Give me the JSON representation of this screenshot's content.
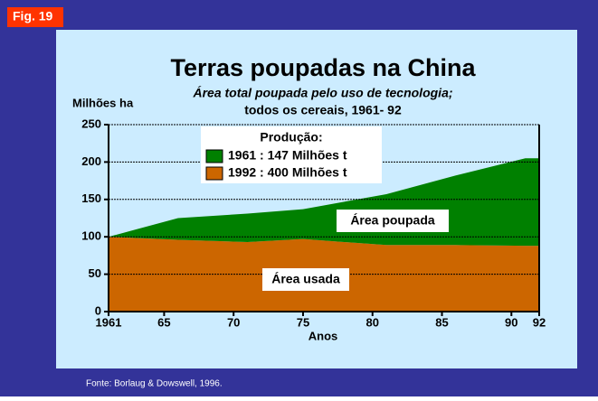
{
  "fig_label": "Fig. 19",
  "source": "Fonte: Borlaug & Dowswell, 1996.",
  "chart_data": {
    "type": "stacked_area",
    "title": "Terras poupadas na China",
    "subtitle": [
      "Área total poupada pelo uso de tecnologia;",
      "todos os cereais, 1961- 92"
    ],
    "y_label": "Milhões ha",
    "x_label": "Anos",
    "x": [
      1961,
      1966,
      1971,
      1975,
      1981,
      1986,
      1991,
      1992
    ],
    "series": [
      {
        "name": "Área usada",
        "color": "#cc6600",
        "values": [
          100,
          96,
          93,
          97,
          89,
          89,
          88,
          88
        ]
      },
      {
        "name": "Área poupada",
        "color": "#008000",
        "values": [
          0,
          29,
          38,
          40,
          68,
          93,
          117,
          117
        ]
      }
    ],
    "legend": {
      "title": "Produção:",
      "items": [
        {
          "label": "1961 : 147 Milhões t",
          "color": "#008000"
        },
        {
          "label": "1992 : 400 Milhões t",
          "color": "#cc6600"
        }
      ]
    },
    "xlim": [
      1961,
      1992
    ],
    "xticks": [
      {
        "value": 1961,
        "label": "1961"
      },
      {
        "value": 1965,
        "label": "65"
      },
      {
        "value": 1970,
        "label": "70"
      },
      {
        "value": 1975,
        "label": "75"
      },
      {
        "value": 1980,
        "label": "80"
      },
      {
        "value": 1985,
        "label": "85"
      },
      {
        "value": 1990,
        "label": "90"
      },
      {
        "value": 1992,
        "label": "92"
      }
    ],
    "ylim": [
      0,
      250
    ],
    "yticks": [
      0,
      50,
      100,
      150,
      200,
      250
    ],
    "grid": true
  }
}
